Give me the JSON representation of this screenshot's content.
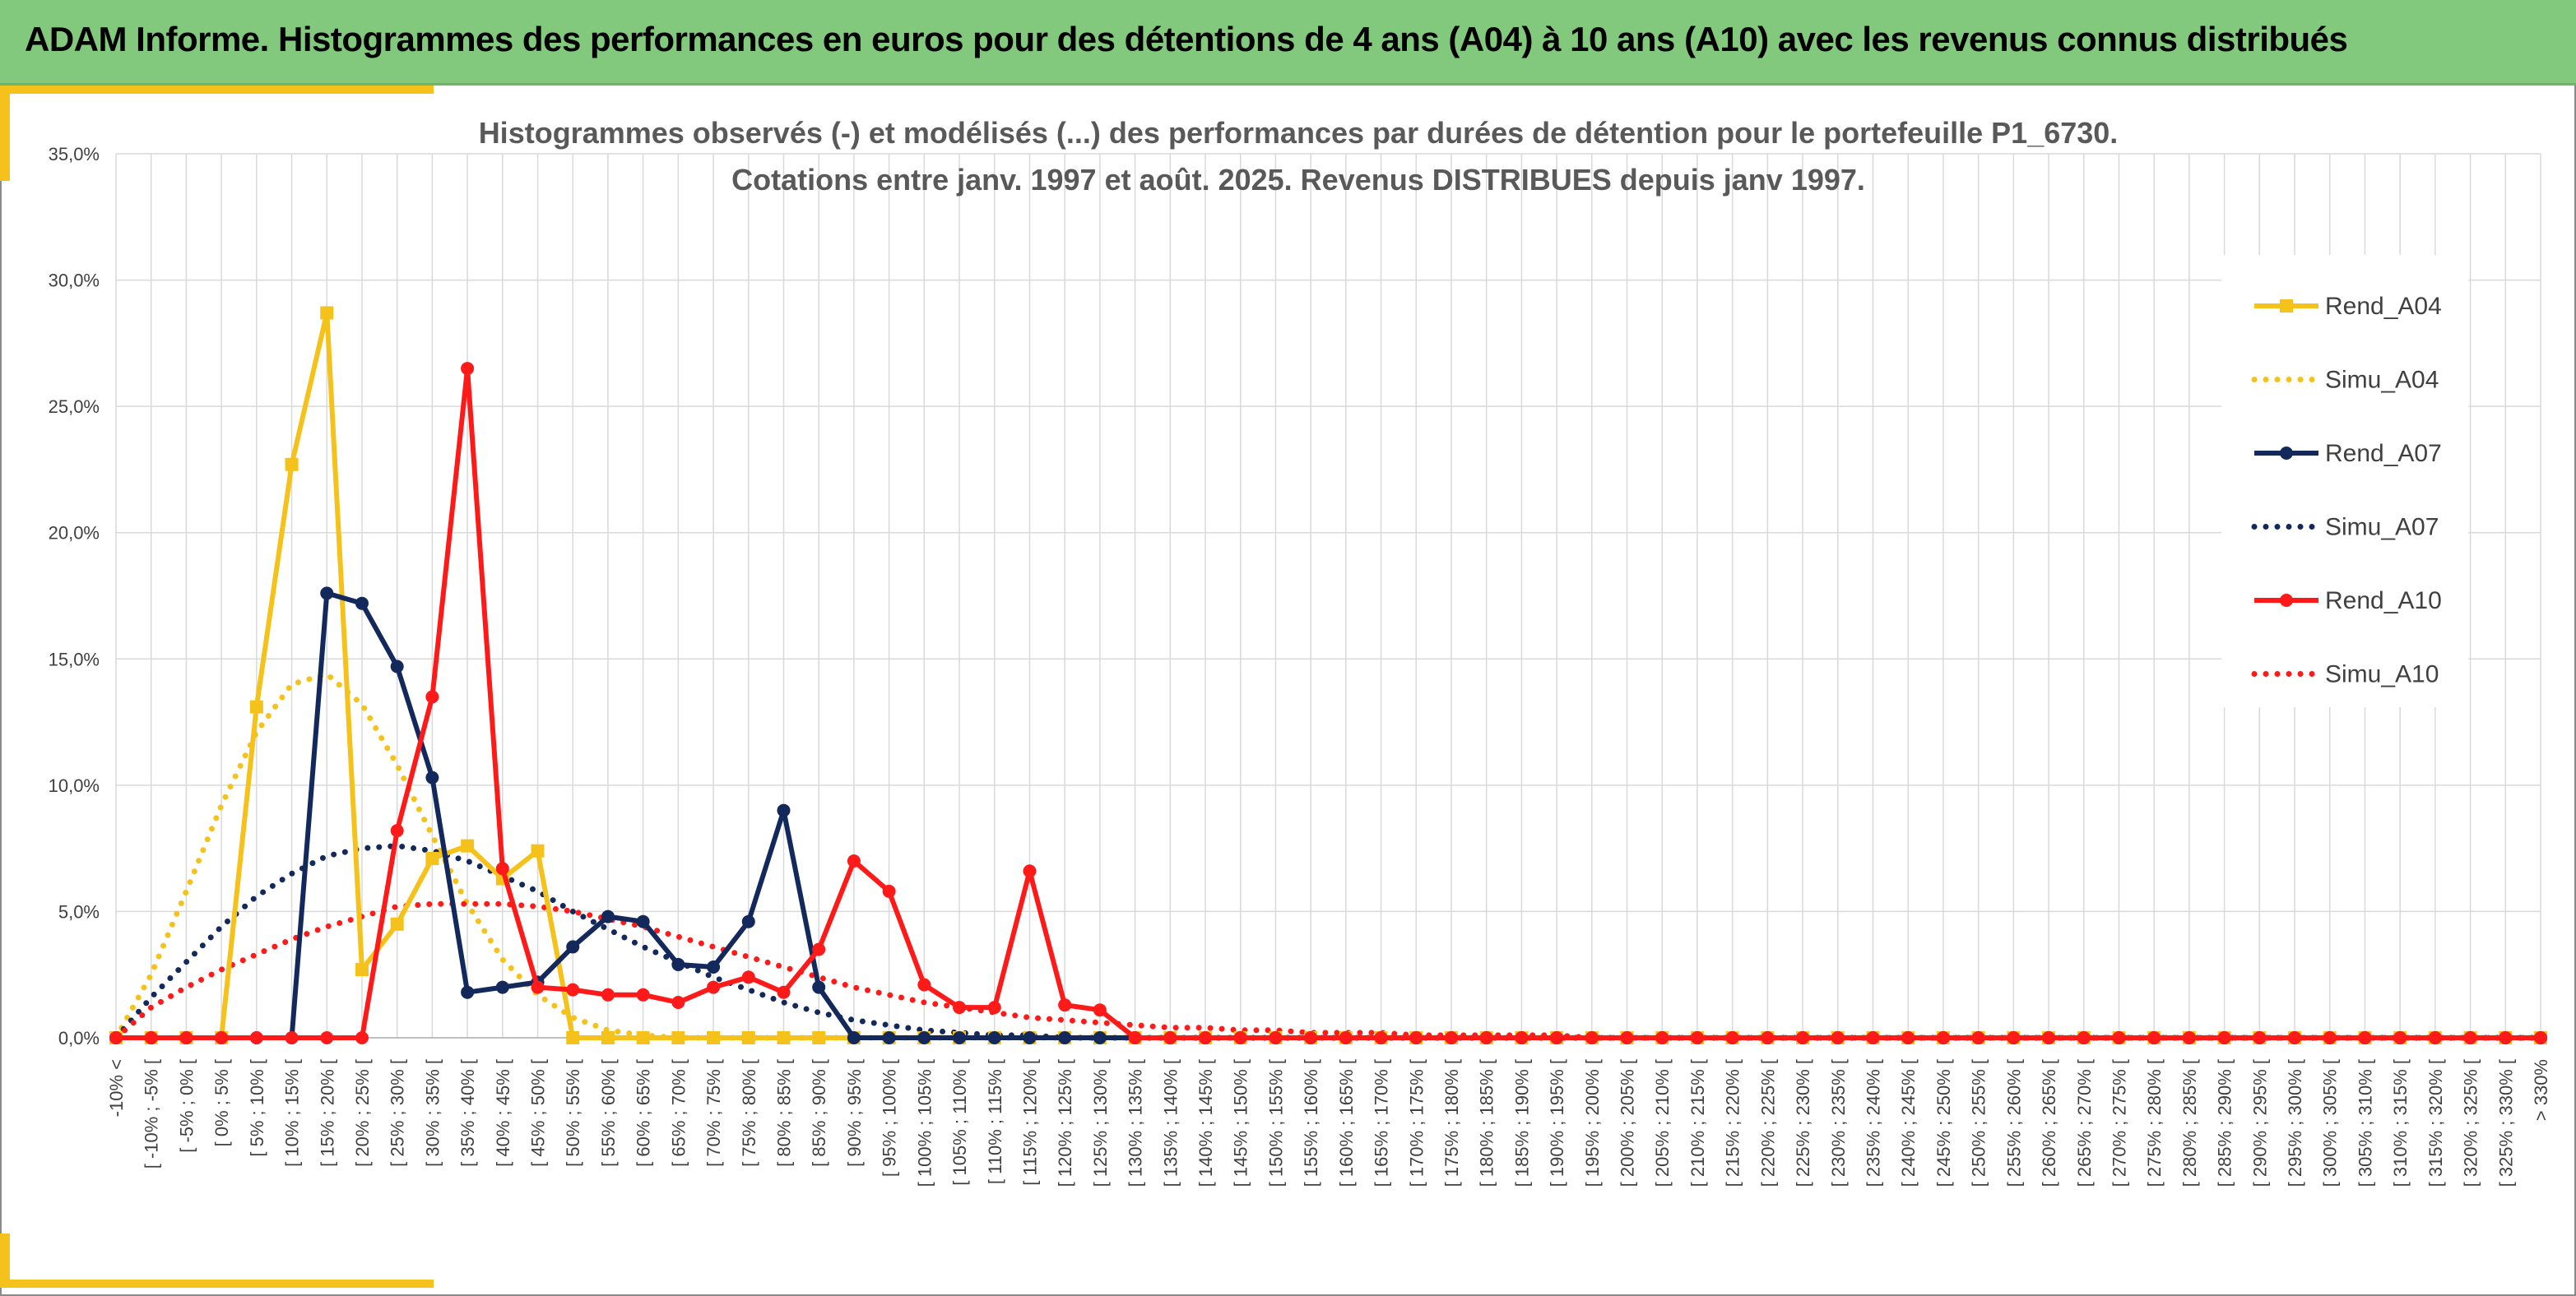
{
  "header": {
    "title": "ADAM Informe. Histogrammes des performances en euros pour des détentions de 4 ans (A04) à 10 ans (A10) avec les revenus connus distribués"
  },
  "colors": {
    "banner": "#82c87d",
    "accent": "#f5c21b",
    "A04": "#f5c21b",
    "A07": "#13295c",
    "A10": "#ff1a1a",
    "grid": "#d9d9d9"
  },
  "chart_data": {
    "type": "line",
    "title_lines": [
      "Histogrammes observés (-) et modélisés (...) des performances par durées de détention pour le portefeuille P1_6730.",
      "Cotations entre janv. 1997 et août. 2025. Revenus DISTRIBUES depuis janv 1997."
    ],
    "xlabel": "",
    "ylabel": "",
    "ylim": [
      0,
      35
    ],
    "y_ticks": [
      "0,0%",
      "5,0%",
      "10,0%",
      "15,0%",
      "20,0%",
      "25,0%",
      "30,0%",
      "35,0%"
    ],
    "grid": true,
    "legend_position": "right",
    "categories": [
      "-10% <",
      "[ -10% ; -5% [",
      "[ -5% ; 0% [",
      "[ 0% ; 5% [",
      "[ 5% ; 10% [",
      "[ 10% ; 15% [",
      "[ 15% ; 20% [",
      "[ 20% ; 25% [",
      "[ 25% ; 30% [",
      "[ 30% ; 35% [",
      "[ 35% ; 40% [",
      "[ 40% ; 45% [",
      "[ 45% ; 50% [",
      "[ 50% ; 55% [",
      "[ 55% ; 60% [",
      "[ 60% ; 65% [",
      "[ 65% ; 70% [",
      "[ 70% ; 75% [",
      "[ 75% ; 80% [",
      "[ 80% ; 85% [",
      "[ 85% ; 90% [",
      "[ 90% ; 95% [",
      "[ 95% ; 100% [",
      "[ 100% ; 105% [",
      "[ 105% ; 110% [",
      "[ 110% ; 115% [",
      "[ 115% ; 120% [",
      "[ 120% ; 125% [",
      "[ 125% ; 130% [",
      "[ 130% ; 135% [",
      "[ 135% ; 140% [",
      "[ 140% ; 145% [",
      "[ 145% ; 150% [",
      "[ 150% ; 155% [",
      "[ 155% ; 160% [",
      "[ 160% ; 165% [",
      "[ 165% ; 170% [",
      "[ 170% ; 175% [",
      "[ 175% ; 180% [",
      "[ 180% ; 185% [",
      "[ 185% ; 190% [",
      "[ 190% ; 195% [",
      "[ 195% ; 200% [",
      "[ 200% ; 205% [",
      "[ 205% ; 210% [",
      "[ 210% ; 215% [",
      "[ 215% ; 220% [",
      "[ 220% ; 225% [",
      "[ 225% ; 230% [",
      "[ 230% ; 235% [",
      "[ 235% ; 240% [",
      "[ 240% ; 245% [",
      "[ 245% ; 250% [",
      "[ 250% ; 255% [",
      "[ 255% ; 260% [",
      "[ 260% ; 265% [",
      "[ 265% ; 270% [",
      "[ 270% ; 275% [",
      "[ 275% ; 280% [",
      "[ 280% ; 285% [",
      "[ 285% ; 290% [",
      "[ 290% ; 295% [",
      "[ 295% ; 300% [",
      "[ 300% ; 305% [",
      "[ 305% ; 310% [",
      "[ 310% ; 315% [",
      "[ 315% ; 320% [",
      "[ 320% ; 325% [",
      "[ 325% ; 330% [",
      "> 330%"
    ],
    "series": [
      {
        "name": "Rend_A04",
        "style": "solid",
        "marker": "square",
        "color": "#f5c21b",
        "values": [
          0,
          0,
          0,
          0,
          13.1,
          22.7,
          28.7,
          2.7,
          4.5,
          7.1,
          7.6,
          6.3,
          7.4,
          0,
          0,
          0,
          0,
          0,
          0,
          0,
          0,
          0,
          0,
          0,
          0,
          0,
          0,
          0,
          0,
          0,
          0,
          0,
          0,
          0,
          0,
          0,
          0,
          0,
          0,
          0,
          0,
          0,
          0,
          0,
          0,
          0,
          0,
          0,
          0,
          0,
          0,
          0,
          0,
          0,
          0,
          0,
          0,
          0,
          0,
          0,
          0,
          0,
          0,
          0,
          0,
          0,
          0,
          0,
          0,
          0
        ]
      },
      {
        "name": "Simu_A04",
        "style": "dotted",
        "marker": "none",
        "color": "#f5c21b",
        "values": [
          0,
          2.5,
          5.8,
          9.2,
          12.1,
          14.0,
          14.4,
          13.2,
          10.8,
          8.0,
          5.3,
          3.1,
          1.7,
          0.8,
          0.3,
          0.1,
          0,
          0,
          0,
          0,
          0,
          0,
          0,
          0,
          0,
          0,
          0,
          0,
          0,
          0,
          0,
          0,
          0,
          0,
          0,
          0,
          0,
          0,
          0,
          0,
          0,
          0,
          0,
          0,
          0,
          0,
          0,
          0,
          0,
          0,
          0,
          0,
          0,
          0,
          0,
          0,
          0,
          0,
          0,
          0,
          0,
          0,
          0,
          0,
          0,
          0,
          0,
          0,
          0,
          0
        ]
      },
      {
        "name": "Rend_A07",
        "style": "solid",
        "marker": "circle",
        "color": "#13295c",
        "values": [
          0,
          0,
          0,
          0,
          0,
          0,
          17.6,
          17.2,
          14.7,
          10.3,
          1.8,
          2.0,
          2.2,
          3.6,
          4.8,
          4.6,
          2.9,
          2.8,
          4.6,
          9.0,
          2.0,
          0,
          0,
          0,
          0,
          0,
          0,
          0,
          0,
          0,
          0,
          0,
          0,
          0,
          0,
          0,
          0,
          0,
          0,
          0,
          0,
          0,
          0,
          0,
          0,
          0,
          0,
          0,
          0,
          0,
          0,
          0,
          0,
          0,
          0,
          0,
          0,
          0,
          0,
          0,
          0,
          0,
          0,
          0,
          0,
          0,
          0,
          0,
          0,
          0
        ]
      },
      {
        "name": "Simu_A07",
        "style": "dotted",
        "marker": "none",
        "color": "#13295c",
        "values": [
          0,
          1.6,
          3.0,
          4.4,
          5.6,
          6.5,
          7.2,
          7.5,
          7.6,
          7.4,
          7.0,
          6.4,
          5.8,
          5.0,
          4.3,
          3.6,
          3.0,
          2.4,
          1.9,
          1.4,
          1.0,
          0.7,
          0.5,
          0.3,
          0.2,
          0.1,
          0.1,
          0,
          0,
          0,
          0,
          0,
          0,
          0,
          0,
          0,
          0,
          0,
          0,
          0,
          0,
          0,
          0,
          0,
          0,
          0,
          0,
          0,
          0,
          0,
          0,
          0,
          0,
          0,
          0,
          0,
          0,
          0,
          0,
          0,
          0,
          0,
          0,
          0,
          0,
          0,
          0,
          0,
          0,
          0
        ]
      },
      {
        "name": "Rend_A10",
        "style": "solid",
        "marker": "circle",
        "color": "#ff1a1a",
        "values": [
          0,
          0,
          0,
          0,
          0,
          0,
          0,
          0,
          8.2,
          13.5,
          26.5,
          6.7,
          2.0,
          1.9,
          1.7,
          1.7,
          1.4,
          2.0,
          2.4,
          1.8,
          3.5,
          7.0,
          5.8,
          2.1,
          1.2,
          1.2,
          6.6,
          1.3,
          1.1,
          0,
          0,
          0,
          0,
          0,
          0,
          0,
          0,
          0,
          0,
          0,
          0,
          0,
          0,
          0,
          0,
          0,
          0,
          0,
          0,
          0,
          0,
          0,
          0,
          0,
          0,
          0,
          0,
          0,
          0,
          0,
          0,
          0,
          0,
          0,
          0,
          0,
          0,
          0,
          0,
          0
        ]
      },
      {
        "name": "Simu_A10",
        "style": "dotted",
        "marker": "none",
        "color": "#ff1a1a",
        "values": [
          0,
          1.2,
          2.0,
          2.7,
          3.3,
          3.9,
          4.4,
          4.8,
          5.2,
          5.3,
          5.3,
          5.3,
          5.2,
          5.0,
          4.7,
          4.4,
          4.0,
          3.6,
          3.2,
          2.8,
          2.4,
          2.0,
          1.7,
          1.4,
          1.2,
          1.0,
          0.8,
          0.7,
          0.6,
          0.5,
          0.4,
          0.4,
          0.3,
          0.3,
          0.2,
          0.2,
          0.2,
          0.1,
          0.1,
          0.1,
          0.1,
          0.1,
          0,
          0,
          0,
          0,
          0,
          0,
          0,
          0,
          0,
          0,
          0,
          0,
          0,
          0,
          0,
          0,
          0,
          0,
          0,
          0,
          0,
          0,
          0,
          0,
          0,
          0,
          0,
          0
        ]
      }
    ]
  }
}
